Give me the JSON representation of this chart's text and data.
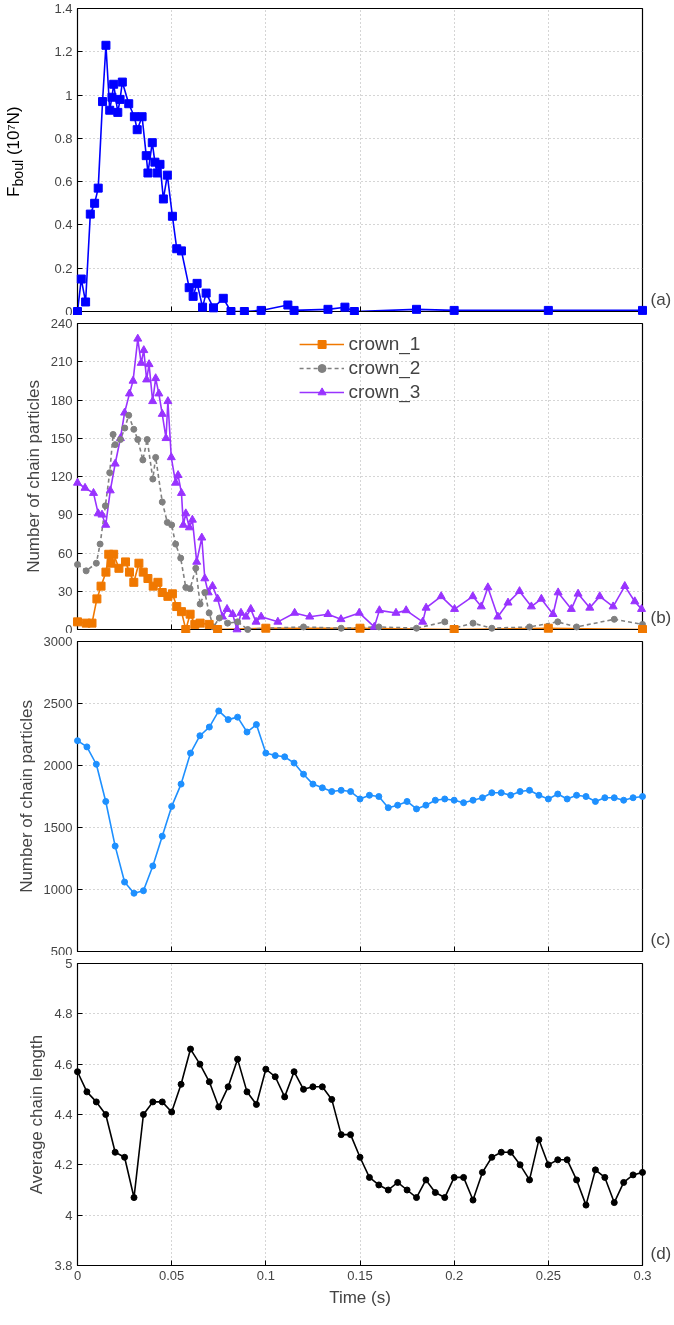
{
  "chart_data": [
    {
      "type": "line",
      "ylabel": "F$_{boul}$ (10⁷N)",
      "xlim": [
        0,
        0.3
      ],
      "xticks": [
        0,
        0.05,
        0.1,
        0.15,
        0.2,
        0.25,
        0.3
      ],
      "ylim": [
        0,
        1.4
      ],
      "yticks": [
        0,
        0.2,
        0.4,
        0.6,
        0.8,
        1,
        1.2,
        1.4
      ],
      "grid": true,
      "tick_labels": "y",
      "legend": false,
      "annotations": [
        "(a)"
      ],
      "series": [
        {
          "color": "#0000ff",
          "marker": "square",
          "x": [
            0,
            0.002,
            0.0043,
            0.0068,
            0.0091,
            0.011,
            0.0133,
            0.0151,
            0.0171,
            0.0183,
            0.0192,
            0.0214,
            0.0226,
            0.0238,
            0.0272,
            0.0302,
            0.0317,
            0.0343,
            0.0365,
            0.0374,
            0.0397,
            0.0411,
            0.0423,
            0.0438,
            0.0456,
            0.0477,
            0.0504,
            0.0527,
            0.0552,
            0.0593,
            0.0614,
            0.0635,
            0.0664,
            0.0683,
            0.0722,
            0.0774,
            0.0815,
            0.0886,
            0.0975,
            0.1117,
            0.115,
            0.133,
            0.142,
            0.147,
            0.18,
            0.2,
            0.25,
            0.3
          ],
          "values": [
            0,
            0.15,
            0.044,
            0.45,
            0.5,
            0.57,
            0.97,
            1.23,
            0.93,
            0.99,
            1.05,
            0.92,
            0.98,
            1.06,
            0.96,
            0.9,
            0.84,
            0.9,
            0.72,
            0.64,
            0.78,
            0.69,
            0.64,
            0.68,
            0.52,
            0.63,
            0.44,
            0.29,
            0.28,
            0.11,
            0.07,
            0.13,
            0.02,
            0.085,
            0.017,
            0.061,
            0,
            0,
            0.005,
            0.03,
            0.005,
            0.01,
            0.02,
            0,
            0.01,
            0.005,
            0.005,
            0.005
          ]
        }
      ]
    },
    {
      "type": "line",
      "ylabel": "Number of chain particles",
      "xlim": [
        0,
        0.3
      ],
      "xticks": [
        0,
        0.05,
        0.1,
        0.15,
        0.2,
        0.25,
        0.3
      ],
      "ylim": [
        0,
        240
      ],
      "yticks": [
        0,
        30,
        60,
        90,
        120,
        150,
        180,
        210,
        240
      ],
      "grid": true,
      "tick_labels": "y",
      "legend": "top",
      "annotations": [
        "(b)"
      ],
      "series": [
        {
          "name": "crown_1",
          "color": "#f07800",
          "marker": "square",
          "line_style": "solid",
          "x": [
            0,
            0.0046,
            0.0077,
            0.0103,
            0.0125,
            0.0151,
            0.0166,
            0.0178,
            0.0192,
            0.022,
            0.0255,
            0.0276,
            0.0299,
            0.0326,
            0.0349,
            0.0374,
            0.0402,
            0.0427,
            0.045,
            0.048,
            0.0504,
            0.0527,
            0.0552,
            0.0575,
            0.0598,
            0.0623,
            0.0651,
            0.0699,
            0.0744,
            0.1,
            0.15,
            0.2,
            0.25,
            0.3
          ],
          "values": [
            6,
            5,
            5,
            24,
            34,
            45,
            59,
            52,
            59,
            48,
            53,
            45,
            37,
            52,
            45,
            40,
            34,
            37,
            29,
            26,
            28,
            18,
            14,
            0,
            12,
            4,
            5,
            4,
            0,
            1,
            1,
            0,
            1,
            0
          ]
        },
        {
          "name": "crown_2",
          "color": "#808080",
          "marker": "circle",
          "line_style": "dashed",
          "x": [
            0,
            0.0046,
            0.01,
            0.012,
            0.0148,
            0.0171,
            0.0189,
            0.02,
            0.0228,
            0.0251,
            0.0272,
            0.0299,
            0.032,
            0.0347,
            0.037,
            0.04,
            0.0415,
            0.045,
            0.0477,
            0.05,
            0.0521,
            0.0548,
            0.0575,
            0.0598,
            0.0628,
            0.0651,
            0.0676,
            0.0699,
            0.0722,
            0.0753,
            0.0797,
            0.085,
            0.0904,
            0.1,
            0.12,
            0.14,
            0.16,
            0.18,
            0.195,
            0.2,
            0.21,
            0.22,
            0.24,
            0.255,
            0.265,
            0.285,
            0.3
          ],
          "values": [
            51,
            46,
            52,
            67,
            97,
            123,
            153,
            145,
            149,
            158,
            168,
            157,
            149,
            133,
            149,
            118,
            135,
            100,
            84,
            82,
            67,
            56,
            33,
            32,
            48,
            20,
            29,
            13,
            2,
            9,
            5,
            6,
            0,
            1,
            2,
            1,
            2,
            1,
            6,
            1,
            5,
            1,
            2,
            6,
            2,
            8,
            4
          ]
        },
        {
          "name": "crown_3",
          "color": "#9933ff",
          "marker": "triangle",
          "line_style": "solid",
          "x": [
            0,
            0.004,
            0.0085,
            0.011,
            0.013,
            0.015,
            0.0174,
            0.02,
            0.0228,
            0.025,
            0.0276,
            0.0295,
            0.032,
            0.0338,
            0.0352,
            0.0367,
            0.038,
            0.0399,
            0.0415,
            0.0432,
            0.045,
            0.047,
            0.048,
            0.0498,
            0.0521,
            0.0534,
            0.0552,
            0.0562,
            0.0575,
            0.0594,
            0.061,
            0.0633,
            0.066,
            0.0676,
            0.0694,
            0.0717,
            0.0744,
            0.077,
            0.0794,
            0.0824,
            0.0847,
            0.0868,
            0.0895,
            0.092,
            0.0948,
            0.0975,
            0.1064,
            0.1153,
            0.1233,
            0.133,
            0.1399,
            0.1496,
            0.1576,
            0.1603,
            0.1691,
            0.1745,
            0.1833,
            0.1851,
            0.1931,
            0.2002,
            0.2099,
            0.2144,
            0.2179,
            0.2232,
            0.2286,
            0.2347,
            0.241,
            0.2463,
            0.2525,
            0.2552,
            0.2622,
            0.2658,
            0.272,
            0.2773,
            0.2844,
            0.2906,
            0.2959,
            0.2995
          ],
          "values": [
            115,
            111,
            107,
            91,
            90,
            82,
            109,
            130,
            150,
            170,
            185,
            195,
            228,
            209,
            219,
            196,
            208,
            179,
            197,
            185,
            169,
            150,
            179,
            135,
            115,
            121,
            107,
            82,
            91,
            80,
            86,
            53,
            72,
            40,
            29,
            34,
            24,
            10,
            16,
            12,
            0,
            13,
            10,
            16,
            6,
            10,
            6,
            13,
            10,
            12,
            8,
            13,
            2,
            15,
            13,
            15,
            6,
            17,
            26,
            16,
            26,
            18,
            33,
            10,
            21,
            30,
            18,
            24,
            12,
            29,
            16,
            28,
            17,
            26,
            18,
            34,
            22,
            16
          ]
        }
      ]
    },
    {
      "type": "line",
      "ylabel": "Number of chain particles",
      "xlim": [
        0,
        0.3
      ],
      "xticks": [
        0,
        0.05,
        0.1,
        0.15,
        0.2,
        0.25,
        0.3
      ],
      "ylim": [
        500,
        3000
      ],
      "yticks": [
        500,
        1000,
        1500,
        2000,
        2500,
        3000
      ],
      "grid": true,
      "tick_labels": "y",
      "legend": false,
      "annotations": [
        "(c)"
      ],
      "series": [
        {
          "color": "#1e90ff",
          "marker": "circle",
          "x": [
            0,
            0.005,
            0.01,
            0.015,
            0.02,
            0.025,
            0.03,
            0.035,
            0.04,
            0.045,
            0.05,
            0.055,
            0.06,
            0.065,
            0.07,
            0.075,
            0.08,
            0.085,
            0.09,
            0.095,
            0.1,
            0.105,
            0.11,
            0.115,
            0.12,
            0.125,
            0.13,
            0.135,
            0.14,
            0.145,
            0.15,
            0.155,
            0.16,
            0.165,
            0.17,
            0.175,
            0.18,
            0.185,
            0.19,
            0.195,
            0.2,
            0.205,
            0.21,
            0.215,
            0.22,
            0.225,
            0.23,
            0.235,
            0.24,
            0.245,
            0.25,
            0.255,
            0.26,
            0.265,
            0.27,
            0.275,
            0.28,
            0.285,
            0.29,
            0.295,
            0.3
          ],
          "values": [
            2200,
            2150,
            2010,
            1710,
            1350,
            1060,
            970,
            990,
            1190,
            1430,
            1670,
            1850,
            2100,
            2240,
            2310,
            2440,
            2370,
            2390,
            2270,
            2330,
            2100,
            2080,
            2070,
            2020,
            1930,
            1850,
            1820,
            1790,
            1800,
            1790,
            1730,
            1760,
            1750,
            1660,
            1680,
            1710,
            1650,
            1680,
            1720,
            1730,
            1720,
            1700,
            1720,
            1740,
            1780,
            1780,
            1760,
            1790,
            1800,
            1760,
            1730,
            1770,
            1730,
            1760,
            1750,
            1710,
            1740,
            1740,
            1720,
            1740,
            1750
          ]
        }
      ]
    },
    {
      "type": "line",
      "xlabel": "Time (s)",
      "ylabel": "Average chain length",
      "xlim": [
        0,
        0.3
      ],
      "xticks": [
        0,
        0.05,
        0.1,
        0.15,
        0.2,
        0.25,
        0.3
      ],
      "ylim": [
        3.8,
        5
      ],
      "yticks": [
        3.8,
        4,
        4.2,
        4.4,
        4.6,
        4.8,
        5
      ],
      "grid": true,
      "legend": false,
      "annotations": [
        "(d)"
      ],
      "series": [
        {
          "color": "#000000",
          "marker": "circle",
          "x": [
            0,
            0.005,
            0.01,
            0.015,
            0.02,
            0.025,
            0.03,
            0.035,
            0.04,
            0.045,
            0.05,
            0.055,
            0.06,
            0.065,
            0.07,
            0.075,
            0.08,
            0.085,
            0.09,
            0.095,
            0.1,
            0.105,
            0.11,
            0.115,
            0.12,
            0.125,
            0.13,
            0.135,
            0.14,
            0.145,
            0.15,
            0.155,
            0.16,
            0.165,
            0.17,
            0.175,
            0.18,
            0.185,
            0.19,
            0.195,
            0.2,
            0.205,
            0.21,
            0.215,
            0.22,
            0.225,
            0.23,
            0.235,
            0.24,
            0.245,
            0.25,
            0.255,
            0.26,
            0.265,
            0.27,
            0.275,
            0.28,
            0.285,
            0.29,
            0.295,
            0.3
          ],
          "values": [
            4.57,
            4.49,
            4.45,
            4.4,
            4.25,
            4.23,
            4.07,
            4.4,
            4.45,
            4.45,
            4.41,
            4.52,
            4.66,
            4.6,
            4.53,
            4.43,
            4.51,
            4.62,
            4.49,
            4.44,
            4.58,
            4.55,
            4.47,
            4.57,
            4.5,
            4.51,
            4.51,
            4.46,
            4.32,
            4.32,
            4.23,
            4.15,
            4.12,
            4.1,
            4.13,
            4.1,
            4.07,
            4.14,
            4.09,
            4.07,
            4.15,
            4.15,
            4.06,
            4.17,
            4.23,
            4.25,
            4.25,
            4.2,
            4.14,
            4.3,
            4.2,
            4.22,
            4.22,
            4.14,
            4.04,
            4.18,
            4.15,
            4.05,
            4.13,
            4.16,
            4.17
          ]
        }
      ]
    }
  ]
}
